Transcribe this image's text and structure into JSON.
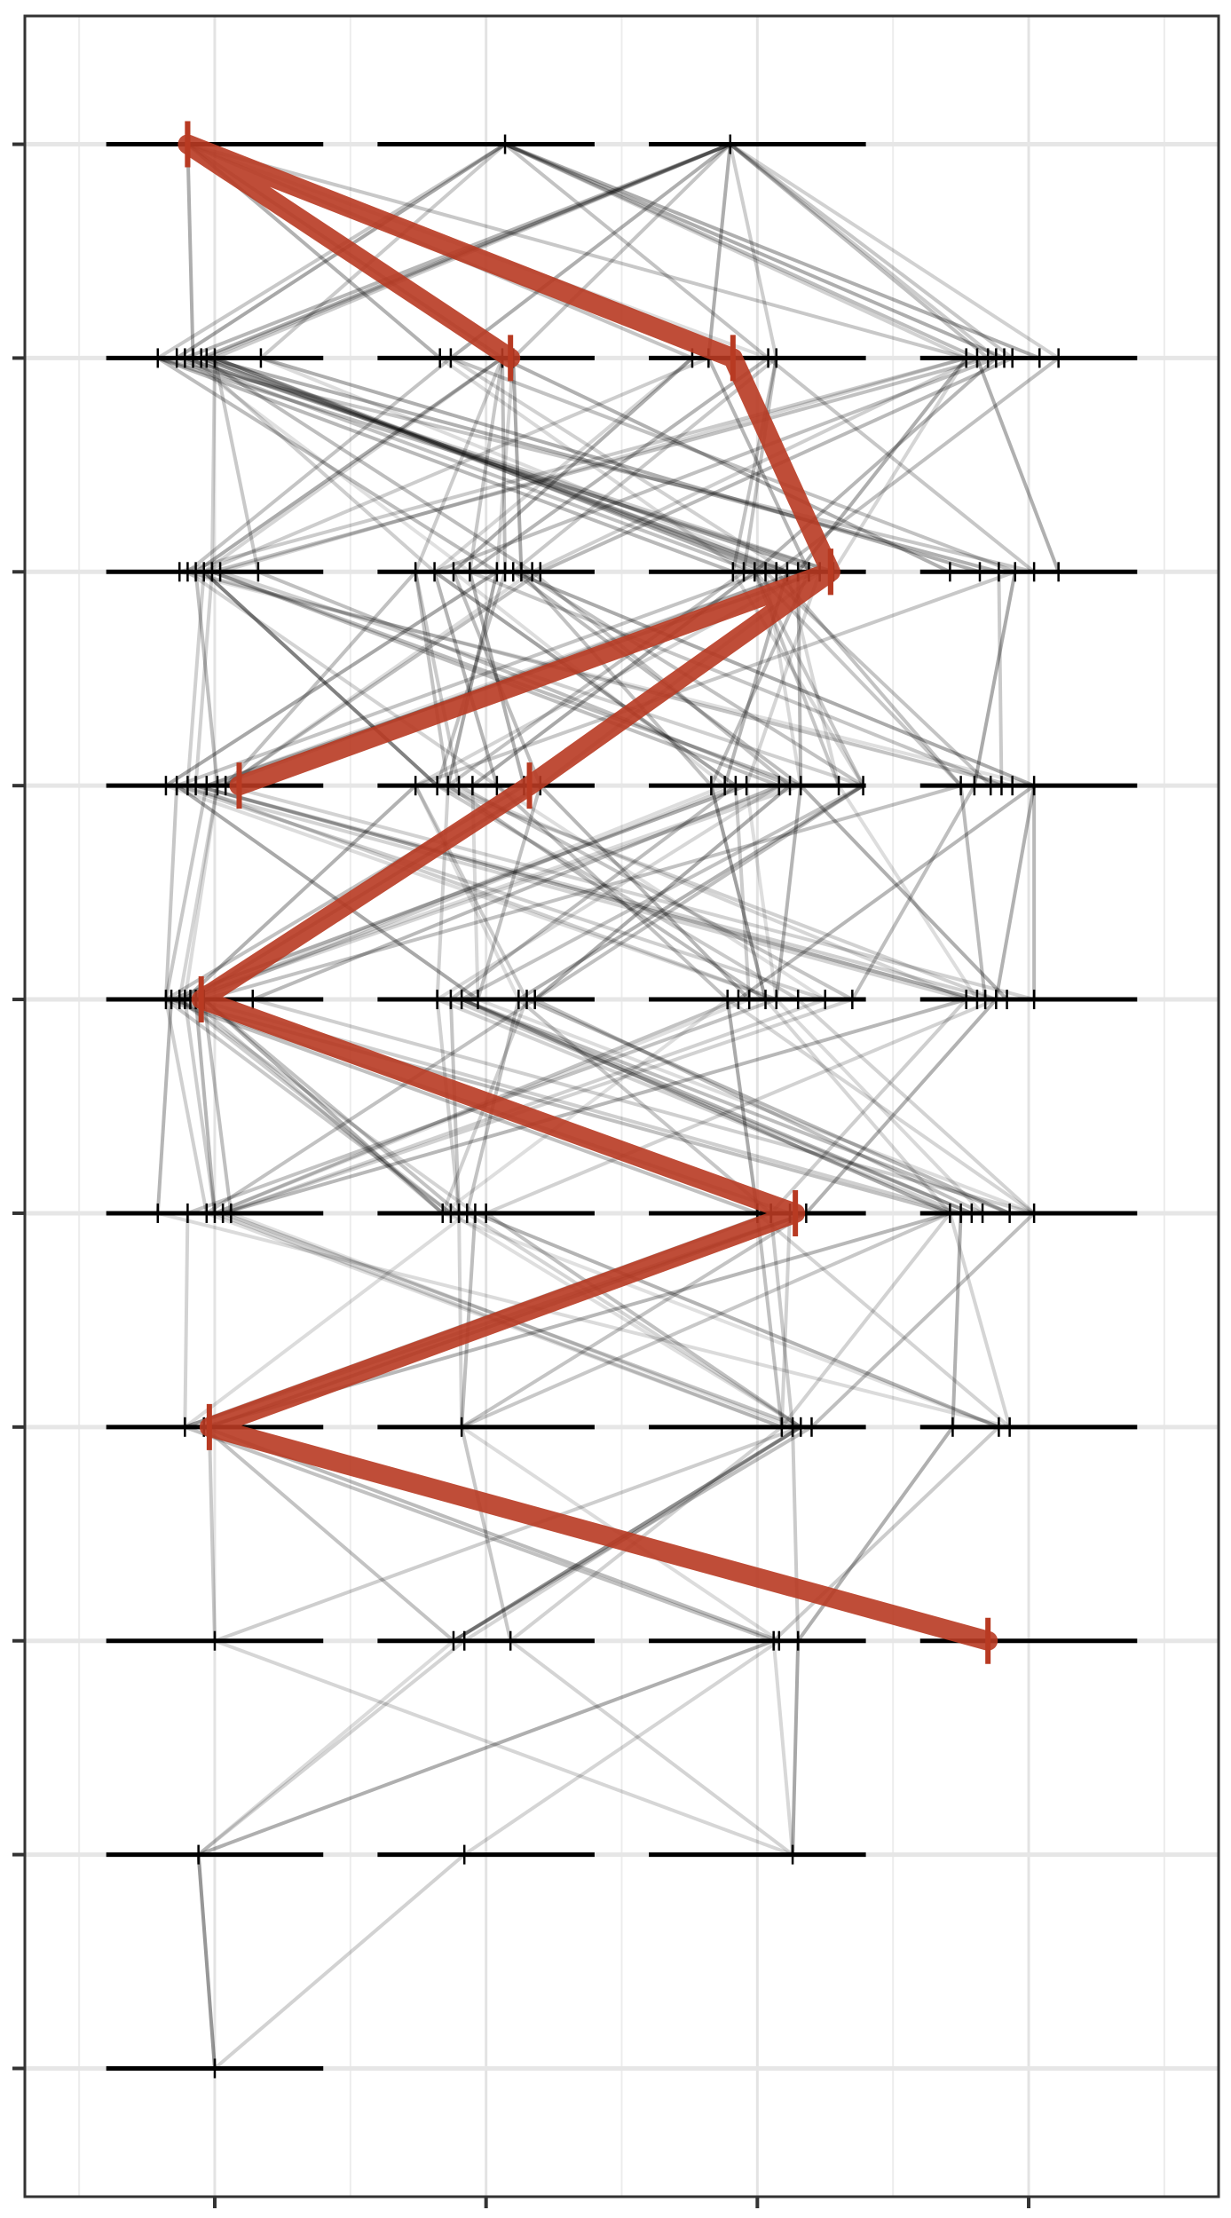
{
  "chart_data": {
    "type": "line",
    "title": "",
    "xlabel": "",
    "ylabel": "",
    "xlim": [
      0.3,
      4.7
    ],
    "ylim": [
      0.4,
      10.6
    ],
    "grid": true,
    "columns": [
      1,
      2,
      3,
      4
    ],
    "rows": [
      1,
      2,
      3,
      4,
      5,
      6,
      7,
      8,
      9,
      10
    ],
    "row_columns": {
      "1": [
        1,
        2,
        3
      ],
      "2": [
        1,
        2,
        3,
        4
      ],
      "3": [
        1,
        2,
        3,
        4
      ],
      "4": [
        1,
        2,
        3,
        4
      ],
      "5": [
        1,
        2,
        3,
        4
      ],
      "6": [
        1,
        2,
        3,
        4
      ],
      "7": [
        1,
        2,
        3,
        4
      ],
      "8": [
        1,
        2,
        3,
        4
      ],
      "9": [
        1,
        2,
        3
      ],
      "10": [
        1
      ]
    },
    "highlight": {
      "color": "#b83a22",
      "points": [
        {
          "x": 0.9,
          "y": 1
        },
        {
          "x": 2.09,
          "y": 2
        },
        {
          "x": 0.9,
          "y": 1
        },
        {
          "x": 2.91,
          "y": 2
        },
        {
          "x": 3.27,
          "y": 3
        },
        {
          "x": 1.09,
          "y": 4
        },
        {
          "x": 3.27,
          "y": 3
        },
        {
          "x": 2.16,
          "y": 4
        },
        {
          "x": 0.95,
          "y": 5
        },
        {
          "x": 3.14,
          "y": 6
        },
        {
          "x": 0.98,
          "y": 7
        },
        {
          "x": 3.85,
          "y": 8
        }
      ]
    },
    "background_points": {
      "1": [
        0.9,
        2.07,
        2.9
      ],
      "2": [
        0.79,
        0.86,
        0.89,
        0.92,
        0.95,
        0.97,
        1.0,
        1.17,
        1.83,
        1.87,
        2.06,
        2.1,
        2.76,
        2.82,
        3.04,
        3.07,
        3.77,
        3.81,
        3.85,
        3.88,
        3.91,
        3.94,
        4.04,
        4.11
      ],
      "3": [
        0.87,
        0.9,
        0.93,
        0.96,
        0.99,
        1.02,
        1.16,
        1.74,
        1.81,
        1.88,
        1.94,
        2.04,
        2.07,
        2.1,
        2.13,
        2.17,
        2.2,
        2.91,
        2.95,
        2.99,
        3.03,
        3.07,
        3.11,
        3.15,
        3.19,
        3.23,
        3.28,
        3.71,
        3.82,
        3.89,
        3.95,
        4.02,
        4.11
      ],
      "4": [
        0.82,
        0.86,
        0.9,
        0.93,
        0.97,
        1.01,
        1.04,
        1.74,
        1.82,
        1.86,
        1.9,
        1.95,
        2.04,
        2.14,
        2.2,
        2.83,
        2.88,
        2.92,
        2.96,
        3.08,
        3.12,
        3.16,
        3.3,
        3.39,
        3.75,
        3.8,
        3.86,
        3.9,
        3.94,
        4.02
      ],
      "5": [
        0.82,
        0.84,
        0.87,
        0.89,
        0.91,
        0.93,
        0.96,
        1.14,
        1.82,
        1.87,
        1.91,
        1.97,
        2.12,
        2.15,
        2.18,
        2.89,
        2.93,
        2.97,
        3.03,
        3.07,
        3.15,
        3.25,
        3.35,
        3.77,
        3.81,
        3.84,
        3.88,
        3.92,
        4.02
      ],
      "6": [
        0.79,
        0.9,
        0.97,
        1.0,
        1.03,
        1.06,
        1.84,
        1.87,
        1.9,
        1.93,
        1.96,
        2.0,
        3.0,
        3.05,
        3.12,
        3.18,
        3.71,
        3.75,
        3.79,
        3.83,
        3.93,
        4.02
      ],
      "7": [
        0.89,
        0.96,
        0.98,
        1.91,
        3.09,
        3.13,
        3.16,
        3.2,
        3.72,
        3.89,
        3.93
      ],
      "8": [
        1.0,
        1.88,
        1.92,
        2.09,
        3.06,
        3.08,
        3.15
      ],
      "9": [
        0.94,
        1.92,
        3.13
      ],
      "10": [
        1.0
      ]
    }
  }
}
